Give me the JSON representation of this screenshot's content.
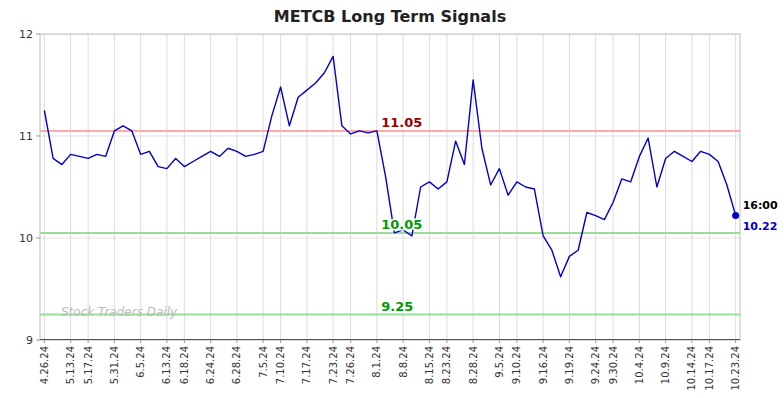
{
  "chart_data": {
    "type": "line",
    "title": "METCB Long Term Signals",
    "categories": [
      "4.26.24",
      null,
      null,
      "5.13.24",
      null,
      "5.17.24",
      null,
      null,
      "5.31.24",
      null,
      null,
      "6.5.24",
      null,
      null,
      "6.13.24",
      null,
      "6.18.24",
      null,
      null,
      "6.24.24",
      null,
      null,
      "6.28.24",
      null,
      null,
      "7.5.24",
      null,
      "7.10.24",
      null,
      null,
      "7.17.24",
      null,
      null,
      "7.23.24",
      null,
      "7.26.24",
      null,
      null,
      "8.1.24",
      null,
      null,
      "8.8.24",
      null,
      null,
      "8.15.24",
      null,
      "8.23.24",
      null,
      null,
      "8.28.24",
      null,
      null,
      "9.5.24",
      null,
      "9.10.24",
      null,
      null,
      "9.16.24",
      null,
      null,
      "9.19.24",
      null,
      null,
      "9.24.24",
      null,
      "9.30.24",
      null,
      null,
      "10.4.24",
      null,
      null,
      "10.9.24",
      null,
      null,
      "10.14.24",
      null,
      "10.17.24",
      null,
      null,
      "10.23.24"
    ],
    "values": [
      11.25,
      10.78,
      10.72,
      10.82,
      10.8,
      10.78,
      10.82,
      10.8,
      11.05,
      11.1,
      11.05,
      10.82,
      10.85,
      10.7,
      10.68,
      10.78,
      10.7,
      10.75,
      10.8,
      10.85,
      10.8,
      10.88,
      10.85,
      10.8,
      10.82,
      10.85,
      11.2,
      11.48,
      11.1,
      11.38,
      11.45,
      11.52,
      11.62,
      11.78,
      11.1,
      11.02,
      11.05,
      11.03,
      11.05,
      10.6,
      10.05,
      10.08,
      10.02,
      10.5,
      10.55,
      10.48,
      10.55,
      10.95,
      10.72,
      11.55,
      10.88,
      10.52,
      10.68,
      10.42,
      10.55,
      10.5,
      10.48,
      10.02,
      9.88,
      9.62,
      9.82,
      9.88,
      10.25,
      10.22,
      10.18,
      10.35,
      10.58,
      10.55,
      10.8,
      10.98,
      10.5,
      10.78,
      10.85,
      10.8,
      10.75,
      10.85,
      10.82,
      10.75,
      10.52,
      10.22
    ],
    "color": "#0000cc",
    "ylim": [
      9.0,
      12.0
    ],
    "yticks": [
      9,
      10,
      11,
      12
    ],
    "grid": true,
    "grid_color": "#cccccc",
    "background_color": "#ffffff",
    "reference_lines": [
      {
        "y": 11.05,
        "color": "#ffaaaa",
        "label": "11.05",
        "label_color": "#990000",
        "x": "8.1.24"
      },
      {
        "y": 10.05,
        "color": "#99dd99",
        "label": "10.05",
        "label_color": "#009900",
        "x": "8.1.24"
      },
      {
        "y": 9.25,
        "color": "#99dd99",
        "label": "9.25",
        "label_color": "#009900",
        "x": "8.1.24"
      },
      {
        "y": 9.0,
        "color": "#555555"
      }
    ],
    "end_point": {
      "time_label": "16:00",
      "value_label": "10.22",
      "color": "#0000cc"
    },
    "watermark": {
      "text": "Stock Traders Daily",
      "color": "#bbbbbb"
    }
  }
}
